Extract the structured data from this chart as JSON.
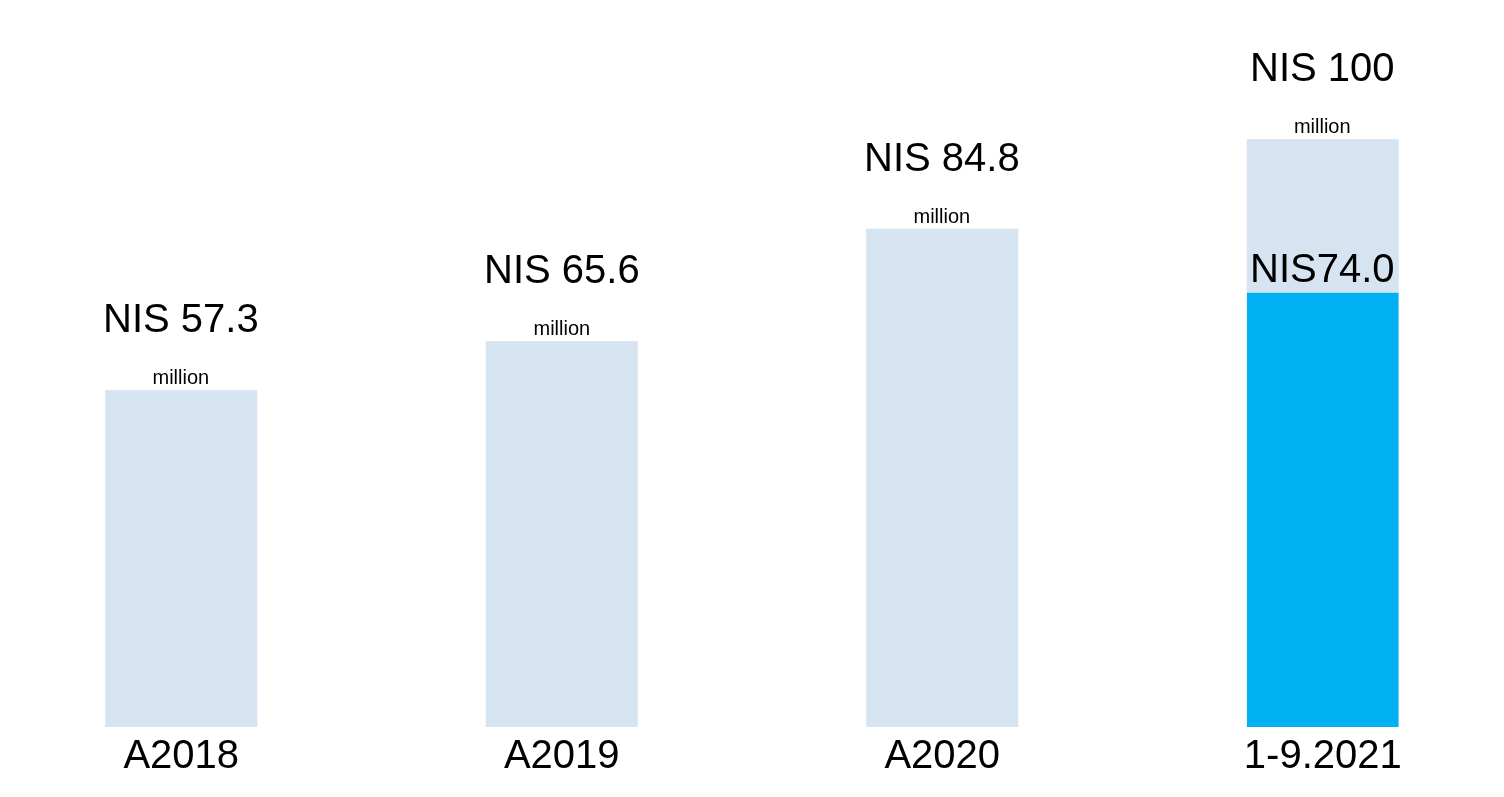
{
  "chart_data": {
    "type": "bar",
    "stacked": true,
    "categories": [
      "A2018",
      "A2019",
      "A2020",
      "1-9.2021"
    ],
    "series": [
      {
        "color": "#00b0f0",
        "values": [
          null,
          null,
          null,
          74.0
        ],
        "value_labels": [
          null,
          null,
          null,
          "NIS74.0"
        ]
      },
      {
        "color": "#d6e3f0",
        "values": [
          57.3,
          65.6,
          84.8,
          26.0
        ],
        "value_labels": [
          "NIS 57.3\nmillion",
          "NIS 65.6\nmillion",
          "NIS 84.8\nmillion",
          null
        ]
      }
    ],
    "totals": [
      null,
      null,
      null,
      "NIS 100\nmillion"
    ],
    "tick_labels": "x"
  }
}
